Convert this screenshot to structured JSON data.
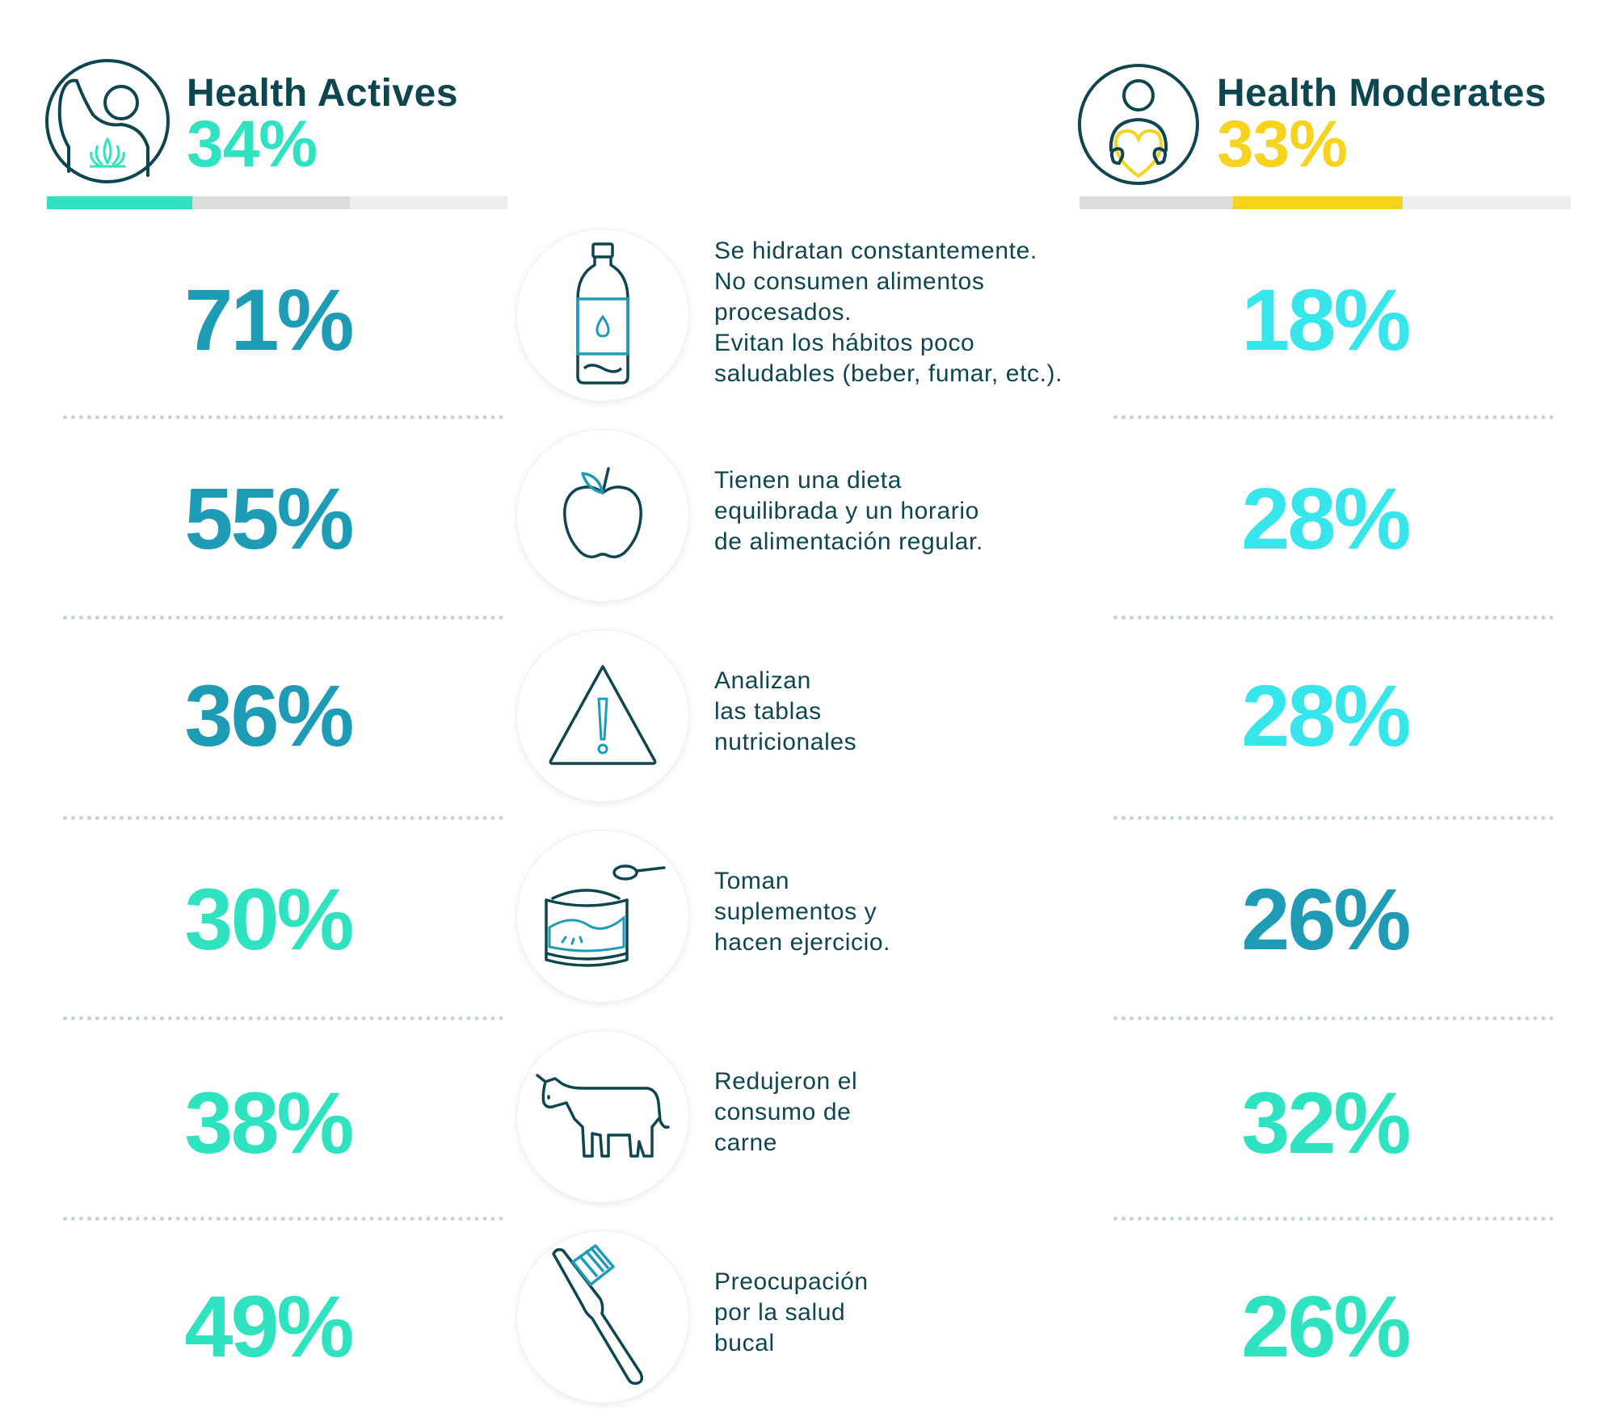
{
  "left": {
    "title": "Health Actives",
    "percent": "34%",
    "percent_color": "#2fe3c0",
    "icon": "person-lotus-icon"
  },
  "right": {
    "title": "Health Moderates",
    "percent": "33%",
    "percent_color": "#f6d31f",
    "icon": "person-heart-icon"
  },
  "left_bar": {
    "active_fraction": 0.34,
    "active_color": "#2fe3c0"
  },
  "right_bar": {
    "active_fraction": 0.33,
    "active_color": "#f6d31f"
  },
  "rows": [
    {
      "left": "71%",
      "right": "18%",
      "left_color": "#1e9bb5",
      "right_color": "#36e6ea",
      "icon": "water-bottle-icon",
      "text": "Se hidratan constantemente.\nNo consumen alimentos\nprocesados.\nEvitan los hábitos poco\nsaludables (beber, fumar, etc.)."
    },
    {
      "left": "55%",
      "right": "28%",
      "left_color": "#1e9bb5",
      "right_color": "#36e6ea",
      "icon": "apple-icon",
      "text": "Tienen una dieta\nequilibrada y un horario\nde alimentación regular."
    },
    {
      "left": "36%",
      "right": "28%",
      "left_color": "#1e9bb5",
      "right_color": "#36e6ea",
      "icon": "warning-triangle-icon",
      "text": "Analizan\nlas tablas\nnutricionales"
    },
    {
      "left": "30%",
      "right": "26%",
      "left_color": "#2fe3c0",
      "right_color": "#1e9bb5",
      "icon": "supplement-can-icon",
      "text": "Toman\nsuplementos y\nhacen ejercicio."
    },
    {
      "left": "38%",
      "right": "32%",
      "left_color": "#2fe3c0",
      "right_color": "#2fe3c0",
      "icon": "cow-icon",
      "text": "Redujeron el\nconsumo de\ncarne"
    },
    {
      "left": "49%",
      "right": "26%",
      "left_color": "#2fe3c0",
      "right_color": "#2fe3c0",
      "icon": "toothbrush-icon",
      "text": "Preocupación\npor la salud\nbucal"
    }
  ]
}
